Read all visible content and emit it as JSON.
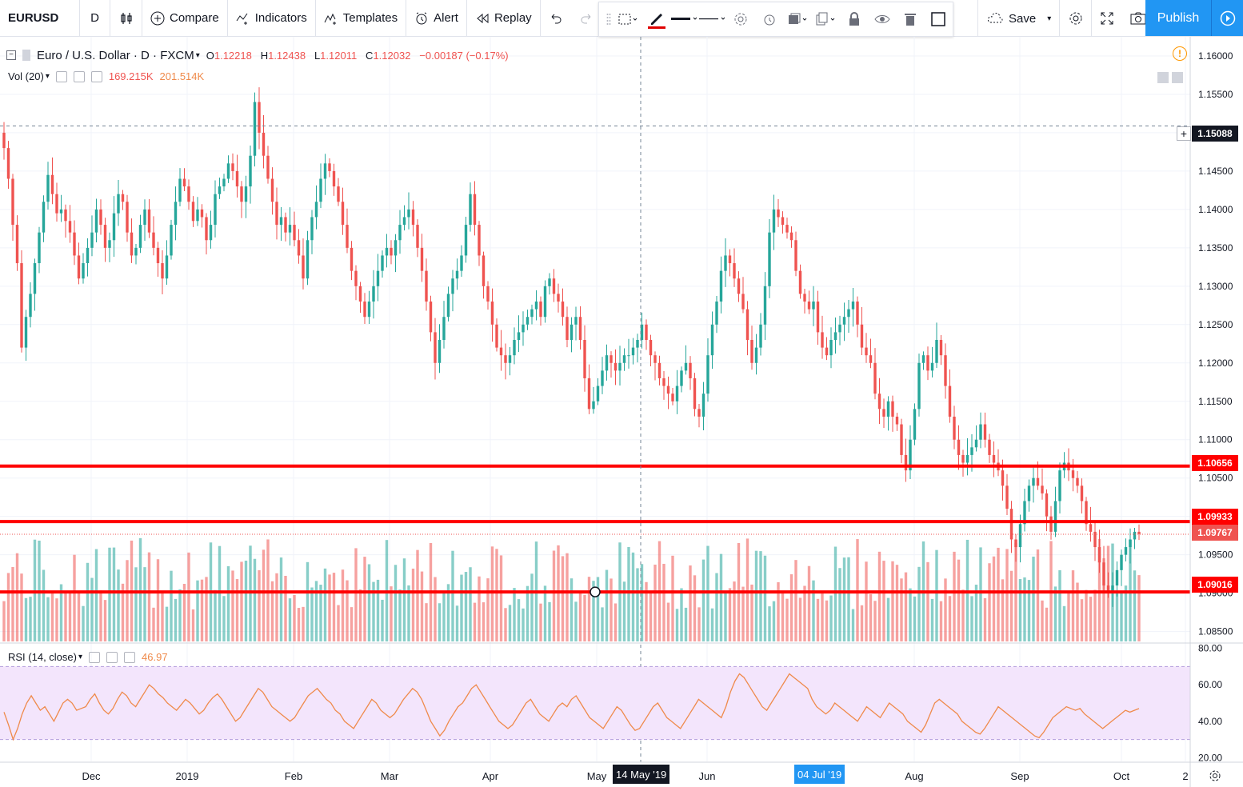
{
  "toolbar": {
    "symbol": "EURUSD",
    "interval": "D",
    "compare": "Compare",
    "indicators": "Indicators",
    "templates": "Templates",
    "alert": "Alert",
    "replay": "Replay",
    "save": "Save",
    "publish": "Publish"
  },
  "legend": {
    "title": "Euro / U.S. Dollar · D · FXCM",
    "open_label": "O",
    "open": "1.12218",
    "high_label": "H",
    "high": "1.12438",
    "low_label": "L",
    "low": "1.12011",
    "close_label": "C",
    "close": "1.12032",
    "change": "−0.00187 (−0.17%)"
  },
  "volume_legend": {
    "name": "Vol (20)",
    "value1": "169.215K",
    "value2": "201.514K"
  },
  "rsi_legend": {
    "name": "RSI (14, close)",
    "value": "46.97"
  },
  "price_labels": {
    "crosshair": "1.15088",
    "line1": "1.10656",
    "line2": "1.09933",
    "current": "1.09767",
    "line3": "1.09016"
  },
  "date_labels": {
    "crosshair": "14 May '19",
    "highlight": "04 Jul '19"
  },
  "colors": {
    "up": "#26a69a",
    "down": "#ef5350",
    "accent": "#2196f3",
    "level": "#ff0000",
    "rsi": "#ef8a4b",
    "rsi_band": "#f3e5fc"
  },
  "chart_data": [
    {
      "type": "candlestick",
      "symbol": "EURUSD",
      "title": "Euro / U.S. Dollar · D · FXCM",
      "x_tick_labels": [
        "Dec",
        "2019",
        "Feb",
        "Mar",
        "Apr",
        "May",
        "Jun",
        "Aug",
        "Sep",
        "Oct",
        "2"
      ],
      "y_tick_labels": [
        "1.16000",
        "1.15500",
        "1.15000",
        "1.14500",
        "1.14000",
        "1.13500",
        "1.13000",
        "1.12500",
        "1.12000",
        "1.11500",
        "1.11000",
        "1.10500",
        "1.10000",
        "1.09500",
        "1.09000",
        "1.08500"
      ],
      "ylim": [
        1.0835,
        1.1625
      ],
      "closes": [
        1.148,
        1.144,
        1.138,
        1.133,
        1.122,
        1.126,
        1.129,
        1.133,
        1.137,
        1.141,
        1.1445,
        1.142,
        1.1395,
        1.14,
        1.1385,
        1.137,
        1.134,
        1.131,
        1.133,
        1.135,
        1.137,
        1.14,
        1.138,
        1.135,
        1.136,
        1.1395,
        1.142,
        1.141,
        1.137,
        1.134,
        1.135,
        1.138,
        1.14,
        1.137,
        1.135,
        1.133,
        1.131,
        1.134,
        1.138,
        1.141,
        1.144,
        1.143,
        1.141,
        1.1385,
        1.14,
        1.139,
        1.136,
        1.138,
        1.142,
        1.143,
        1.144,
        1.146,
        1.145,
        1.143,
        1.141,
        1.143,
        1.147,
        1.154,
        1.15,
        1.147,
        1.144,
        1.141,
        1.138,
        1.139,
        1.137,
        1.138,
        1.136,
        1.134,
        1.131,
        1.136,
        1.139,
        1.141,
        1.144,
        1.146,
        1.145,
        1.143,
        1.141,
        1.138,
        1.135,
        1.132,
        1.13,
        1.128,
        1.126,
        1.128,
        1.13,
        1.132,
        1.134,
        1.135,
        1.134,
        1.136,
        1.138,
        1.139,
        1.14,
        1.138,
        1.135,
        1.132,
        1.128,
        1.124,
        1.12,
        1.123,
        1.126,
        1.129,
        1.131,
        1.132,
        1.134,
        1.138,
        1.142,
        1.138,
        1.134,
        1.13,
        1.128,
        1.125,
        1.122,
        1.121,
        1.12,
        1.121,
        1.123,
        1.124,
        1.125,
        1.126,
        1.127,
        1.128,
        1.126,
        1.13,
        1.131,
        1.129,
        1.128,
        1.126,
        1.123,
        1.125,
        1.126,
        1.123,
        1.118,
        1.114,
        1.115,
        1.117,
        1.119,
        1.121,
        1.12,
        1.119,
        1.12,
        1.121,
        1.121,
        1.122,
        1.123,
        1.125,
        1.123,
        1.121,
        1.12,
        1.118,
        1.117,
        1.116,
        1.115,
        1.117,
        1.119,
        1.12,
        1.118,
        1.114,
        1.113,
        1.116,
        1.121,
        1.125,
        1.128,
        1.132,
        1.134,
        1.133,
        1.131,
        1.129,
        1.127,
        1.123,
        1.12,
        1.122,
        1.125,
        1.13,
        1.137,
        1.14,
        1.139,
        1.138,
        1.137,
        1.136,
        1.132,
        1.129,
        1.128,
        1.127,
        1.128,
        1.124,
        1.122,
        1.121,
        1.123,
        1.124,
        1.125,
        1.126,
        1.127,
        1.128,
        1.125,
        1.122,
        1.121,
        1.12,
        1.116,
        1.114,
        1.113,
        1.115,
        1.113,
        1.112,
        1.108,
        1.106,
        1.11,
        1.114,
        1.12,
        1.121,
        1.119,
        1.12,
        1.123,
        1.121,
        1.117,
        1.113,
        1.11,
        1.108,
        1.107,
        1.108,
        1.109,
        1.11,
        1.112,
        1.11,
        1.108,
        1.107,
        1.106,
        1.104,
        1.101,
        1.097,
        1.096,
        1.099,
        1.102,
        1.104,
        1.105,
        1.104,
        1.103,
        1.1,
        1.098,
        1.102,
        1.106,
        1.107,
        1.106,
        1.105,
        1.104,
        1.102,
        1.099,
        1.098,
        1.096,
        1.094,
        1.091,
        1.09,
        1.091,
        1.093,
        1.095,
        1.096,
        1.097,
        1.098,
        1.0977
      ],
      "volume_legend": "Vol (20)",
      "horizontal_levels": [
        1.10656,
        1.09933,
        1.09016
      ],
      "current_price": 1.09767,
      "crosshair_price": 1.15088
    },
    {
      "type": "line",
      "name": "RSI (14, close)",
      "y_tick_labels": [
        "80.00",
        "60.00",
        "40.00",
        "20.00"
      ],
      "ylim": [
        18,
        82
      ],
      "bands": [
        30,
        70
      ],
      "values": [
        45,
        38,
        30,
        36,
        44,
        50,
        54,
        50,
        46,
        48,
        44,
        40,
        45,
        50,
        52,
        50,
        46,
        47,
        48,
        52,
        55,
        50,
        46,
        44,
        47,
        52,
        56,
        54,
        50,
        48,
        52,
        56,
        60,
        58,
        55,
        53,
        50,
        48,
        46,
        49,
        52,
        50,
        47,
        44,
        46,
        50,
        53,
        55,
        52,
        48,
        44,
        40,
        42,
        46,
        50,
        54,
        58,
        56,
        52,
        48,
        46,
        44,
        42,
        40,
        42,
        46,
        50,
        54,
        56,
        58,
        55,
        52,
        50,
        46,
        44,
        40,
        38,
        36,
        40,
        44,
        48,
        52,
        50,
        46,
        44,
        42,
        44,
        48,
        52,
        55,
        58,
        56,
        52,
        46,
        40,
        36,
        32,
        35,
        40,
        44,
        48,
        50,
        54,
        58,
        60,
        56,
        52,
        48,
        44,
        40,
        38,
        36,
        38,
        42,
        46,
        50,
        52,
        48,
        44,
        42,
        40,
        44,
        48,
        50,
        48,
        52,
        54,
        50,
        46,
        42,
        40,
        38,
        36,
        40,
        44,
        48,
        46,
        42,
        38,
        35,
        36,
        40,
        44,
        48,
        50,
        46,
        42,
        40,
        38,
        36,
        40,
        44,
        48,
        52,
        50,
        48,
        46,
        44,
        42,
        48,
        56,
        62,
        66,
        64,
        60,
        56,
        52,
        48,
        46,
        50,
        54,
        58,
        62,
        66,
        64,
        62,
        60,
        58,
        52,
        48,
        46,
        44,
        46,
        50,
        48,
        46,
        44,
        42,
        40,
        44,
        48,
        46,
        44,
        42,
        46,
        50,
        48,
        46,
        44,
        40,
        38,
        36,
        34,
        38,
        44,
        50,
        52,
        50,
        48,
        46,
        44,
        40,
        38,
        36,
        34,
        33,
        36,
        40,
        44,
        48,
        46,
        44,
        42,
        40,
        38,
        36,
        34,
        32,
        31,
        34,
        38,
        42,
        44,
        46,
        48,
        47,
        46,
        47,
        44,
        42,
        40,
        38,
        36,
        38,
        40,
        42,
        44,
        46,
        45,
        46,
        46.97
      ]
    }
  ]
}
